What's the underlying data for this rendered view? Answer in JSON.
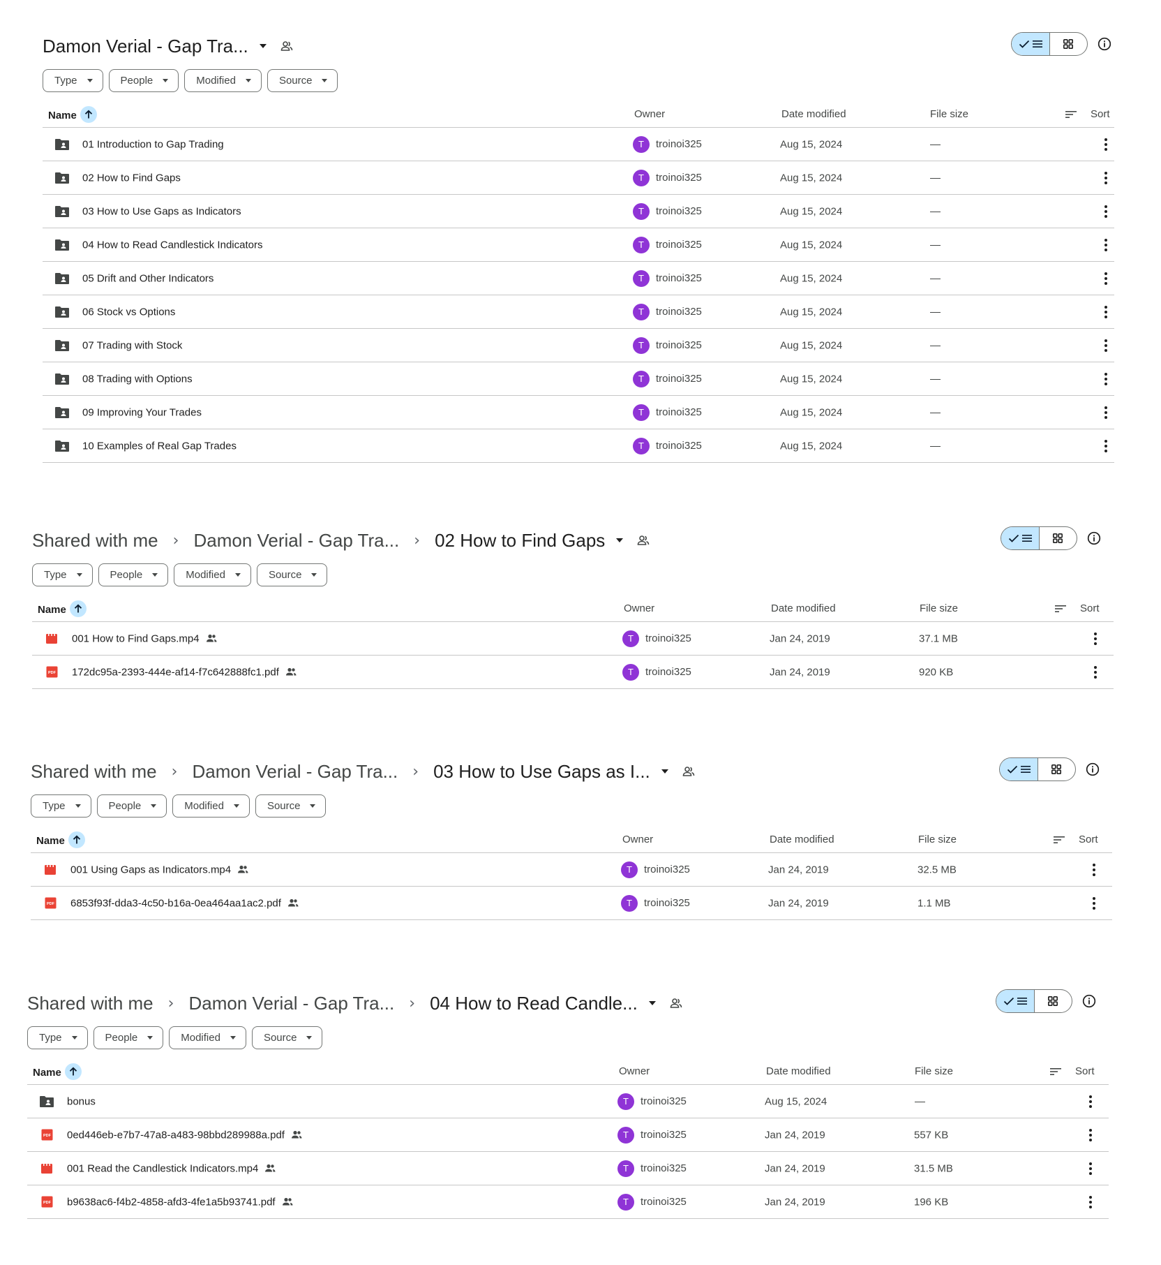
{
  "common": {
    "filters": [
      "Type",
      "People",
      "Modified",
      "Source"
    ],
    "columns": {
      "name": "Name",
      "owner": "Owner",
      "date": "Date modified",
      "size": "File size",
      "sort": "Sort"
    },
    "avatar_letter": "T",
    "colors": {
      "avatar": "#8f34d6",
      "accent": "#c2e7ff",
      "video": "#e94235",
      "pdf": "#ea4335",
      "folder": "#444746"
    }
  },
  "panels": [
    {
      "breadcrumb": [
        "Damon Verial - Gap Tra..."
      ],
      "rows": [
        {
          "type": "folder",
          "name": "01 Introduction to Gap Trading",
          "owner": "troinoi325",
          "date": "Aug 15, 2024",
          "size": "—",
          "shared": false
        },
        {
          "type": "folder",
          "name": "02 How to Find Gaps",
          "owner": "troinoi325",
          "date": "Aug 15, 2024",
          "size": "—",
          "shared": false
        },
        {
          "type": "folder",
          "name": "03 How to Use Gaps as Indicators",
          "owner": "troinoi325",
          "date": "Aug 15, 2024",
          "size": "—",
          "shared": false
        },
        {
          "type": "folder",
          "name": "04 How to Read Candlestick Indicators",
          "owner": "troinoi325",
          "date": "Aug 15, 2024",
          "size": "—",
          "shared": false
        },
        {
          "type": "folder",
          "name": "05 Drift and Other Indicators",
          "owner": "troinoi325",
          "date": "Aug 15, 2024",
          "size": "—",
          "shared": false
        },
        {
          "type": "folder",
          "name": "06 Stock vs Options",
          "owner": "troinoi325",
          "date": "Aug 15, 2024",
          "size": "—",
          "shared": false
        },
        {
          "type": "folder",
          "name": "07 Trading with Stock",
          "owner": "troinoi325",
          "date": "Aug 15, 2024",
          "size": "—",
          "shared": false
        },
        {
          "type": "folder",
          "name": "08 Trading with Options",
          "owner": "troinoi325",
          "date": "Aug 15, 2024",
          "size": "—",
          "shared": false
        },
        {
          "type": "folder",
          "name": "09 Improving Your Trades",
          "owner": "troinoi325",
          "date": "Aug 15, 2024",
          "size": "—",
          "shared": false
        },
        {
          "type": "folder",
          "name": "10 Examples of Real Gap Trades",
          "owner": "troinoi325",
          "date": "Aug 15, 2024",
          "size": "—",
          "shared": false
        }
      ]
    },
    {
      "breadcrumb": [
        "Shared with me",
        "Damon Verial - Gap Tra...",
        "02 How to Find Gaps"
      ],
      "rows": [
        {
          "type": "video",
          "name": "001 How to Find Gaps.mp4",
          "owner": "troinoi325",
          "date": "Jan 24, 2019",
          "size": "37.1 MB",
          "shared": true
        },
        {
          "type": "pdf",
          "name": "172dc95a-2393-444e-af14-f7c642888fc1.pdf",
          "owner": "troinoi325",
          "date": "Jan 24, 2019",
          "size": "920 KB",
          "shared": true
        }
      ]
    },
    {
      "breadcrumb": [
        "Shared with me",
        "Damon Verial - Gap Tra...",
        "03 How to Use Gaps as I..."
      ],
      "rows": [
        {
          "type": "video",
          "name": "001 Using Gaps as Indicators.mp4",
          "owner": "troinoi325",
          "date": "Jan 24, 2019",
          "size": "32.5 MB",
          "shared": true
        },
        {
          "type": "pdf",
          "name": "6853f93f-dda3-4c50-b16a-0ea464aa1ac2.pdf",
          "owner": "troinoi325",
          "date": "Jan 24, 2019",
          "size": "1.1 MB",
          "shared": true
        }
      ]
    },
    {
      "breadcrumb": [
        "Shared with me",
        "Damon Verial - Gap Tra...",
        "04 How to Read Candle..."
      ],
      "rows": [
        {
          "type": "folder",
          "name": "bonus",
          "owner": "troinoi325",
          "date": "Aug 15, 2024",
          "size": "—",
          "shared": false
        },
        {
          "type": "pdf",
          "name": "0ed446eb-e7b7-47a8-a483-98bbd289988a.pdf",
          "owner": "troinoi325",
          "date": "Jan 24, 2019",
          "size": "557 KB",
          "shared": true
        },
        {
          "type": "video",
          "name": "001 Read the Candlestick Indicators.mp4",
          "owner": "troinoi325",
          "date": "Jan 24, 2019",
          "size": "31.5 MB",
          "shared": true
        },
        {
          "type": "pdf",
          "name": "b9638ac6-f4b2-4858-afd3-4fe1a5b93741.pdf",
          "owner": "troinoi325",
          "date": "Jan 24, 2019",
          "size": "196 KB",
          "shared": true
        }
      ]
    }
  ]
}
